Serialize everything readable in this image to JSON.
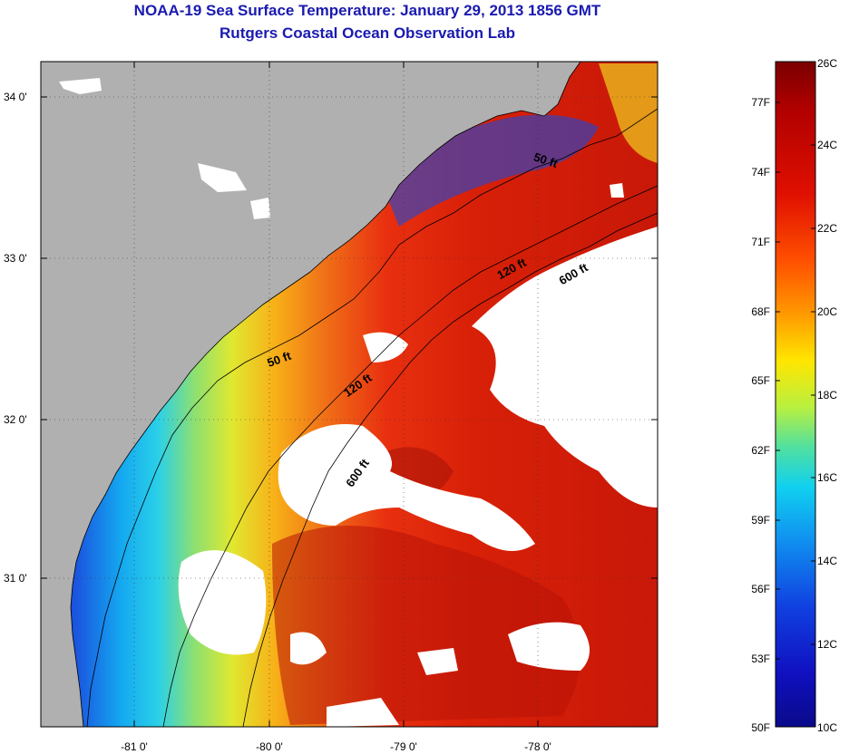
{
  "title": "NOAA-19 Sea Surface Temperature:  January 29, 2013 1856 GMT",
  "subtitle": "Rutgers Coastal Ocean Observation Lab",
  "colors": {
    "land": "#b0b0b0",
    "cloud": "#ffffff",
    "title": "#1a1ab0"
  },
  "map": {
    "lat_ticks": [
      "34 0'",
      "33 0'",
      "32 0'",
      "31 0'"
    ],
    "lon_ticks": [
      "-81 0'",
      "-80 0'",
      "-79 0'",
      "-78 0'"
    ],
    "contours": [
      {
        "label": "50 ft"
      },
      {
        "label": "50 ft"
      },
      {
        "label": "120 ft"
      },
      {
        "label": "120 ft"
      },
      {
        "label": "600 ft"
      },
      {
        "label": "600 ft"
      }
    ]
  },
  "colorbar": {
    "celsius": [
      "26C",
      "24C",
      "22C",
      "20C",
      "18C",
      "16C",
      "14C",
      "12C",
      "10C"
    ],
    "fahrenheit": [
      "77F",
      "74F",
      "71F",
      "68F",
      "65F",
      "62F",
      "59F",
      "56F",
      "53F",
      "50F"
    ]
  }
}
